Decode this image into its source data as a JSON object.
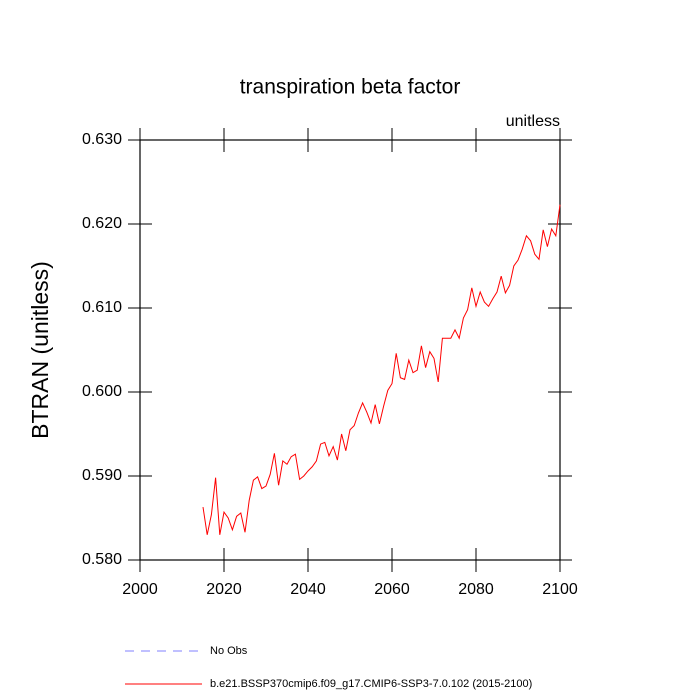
{
  "chart_data": {
    "type": "line",
    "title": "transpiration beta factor",
    "annotation": "unitless",
    "ylabel": "BTRAN  (unitless)",
    "x": [
      2015,
      2016,
      2017,
      2018,
      2019,
      2020,
      2021,
      2022,
      2023,
      2024,
      2025,
      2026,
      2027,
      2028,
      2029,
      2030,
      2031,
      2032,
      2033,
      2034,
      2035,
      2036,
      2037,
      2038,
      2039,
      2040,
      2041,
      2042,
      2043,
      2044,
      2045,
      2046,
      2047,
      2048,
      2049,
      2050,
      2051,
      2052,
      2053,
      2054,
      2055,
      2056,
      2057,
      2058,
      2059,
      2060,
      2061,
      2062,
      2063,
      2064,
      2065,
      2066,
      2067,
      2068,
      2069,
      2070,
      2071,
      2072,
      2073,
      2074,
      2075,
      2076,
      2077,
      2078,
      2079,
      2080,
      2081,
      2082,
      2083,
      2084,
      2085,
      2086,
      2087,
      2088,
      2089,
      2090,
      2091,
      2092,
      2093,
      2094,
      2095,
      2096,
      2097,
      2098,
      2099,
      2100
    ],
    "series": [
      {
        "name": "b.e21.BSSP370cmip6.f09_g17.CMIP6-SSP3-7.0.102 (2015-2100)",
        "color": "#ff0000",
        "values": [
          0.5863,
          0.583,
          0.5854,
          0.5898,
          0.583,
          0.5857,
          0.585,
          0.5836,
          0.5852,
          0.5856,
          0.5833,
          0.5871,
          0.5895,
          0.5899,
          0.5885,
          0.5888,
          0.5902,
          0.5927,
          0.5889,
          0.5918,
          0.5914,
          0.5923,
          0.5926,
          0.5896,
          0.59,
          0.5906,
          0.5911,
          0.5918,
          0.5938,
          0.594,
          0.5924,
          0.5935,
          0.5919,
          0.595,
          0.593,
          0.5955,
          0.596,
          0.5975,
          0.5987,
          0.5976,
          0.5963,
          0.5985,
          0.5962,
          0.5983,
          0.6002,
          0.601,
          0.6046,
          0.6017,
          0.6015,
          0.6038,
          0.6023,
          0.6026,
          0.6055,
          0.6029,
          0.6048,
          0.604,
          0.6012,
          0.6064,
          0.6064,
          0.6064,
          0.6074,
          0.6064,
          0.6088,
          0.6098,
          0.6124,
          0.6102,
          0.6119,
          0.6107,
          0.6102,
          0.6111,
          0.6119,
          0.6138,
          0.6118,
          0.6127,
          0.615,
          0.6157,
          0.617,
          0.6186,
          0.618,
          0.6164,
          0.6158,
          0.6193,
          0.6173,
          0.6194,
          0.6186,
          0.6223
        ]
      }
    ],
    "legend_extra": [
      {
        "name": "No Obs",
        "color": "#8080ff",
        "style": "dashed"
      }
    ],
    "xlim": [
      2000,
      2100
    ],
    "xticks": [
      2000,
      2020,
      2040,
      2060,
      2080,
      2100
    ],
    "ylim": [
      0.58,
      0.63
    ],
    "yticks": [
      {
        "value": 0.58,
        "label": "0.580"
      },
      {
        "value": 0.59,
        "label": "0.590"
      },
      {
        "value": 0.6,
        "label": "0.600"
      },
      {
        "value": 0.61,
        "label": "0.610"
      },
      {
        "value": 0.62,
        "label": "0.620"
      },
      {
        "value": 0.63,
        "label": "0.630"
      }
    ]
  }
}
